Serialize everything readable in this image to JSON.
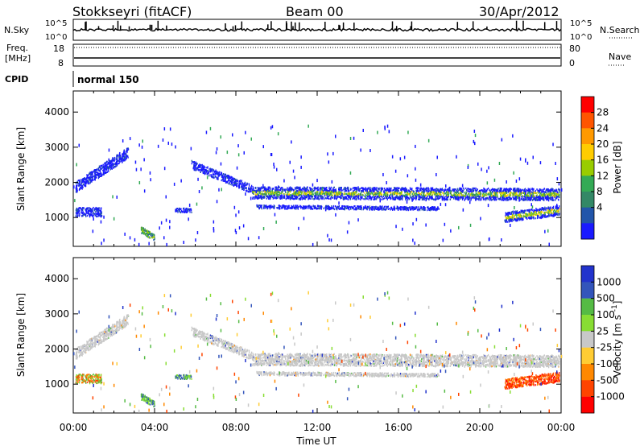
{
  "header": {
    "station": "Stokkseyri (fitACF)",
    "beam": "Beam 00",
    "date": "30/Apr/2012"
  },
  "panels": {
    "nsky": {
      "label": "N.Sky",
      "ticks": [
        "10^5",
        "10^0"
      ],
      "right_ticks": [
        "10^5",
        "10^0"
      ],
      "right_label": "N.Search"
    },
    "freq": {
      "label_line1": "Freq.",
      "label_line2": "[MHz]",
      "ticks": [
        "18",
        "8"
      ],
      "right_ticks": [
        "80",
        "0"
      ],
      "right_label": "Nave"
    },
    "cpid": {
      "label": "CPID",
      "mode": "normal 150"
    }
  },
  "chart_data": [
    {
      "type": "heatmap",
      "title": "",
      "xlabel": "",
      "ylabel": "Slant Range [km]",
      "colorbar_label": "Power [dB]",
      "colorbar_ticks": [
        "28",
        "24",
        "20",
        "16",
        "12",
        "8",
        "4"
      ],
      "colorbar_colors": [
        "#ff0000",
        "#ff5500",
        "#ff9900",
        "#ffcc00",
        "#99cc00",
        "#33aa55",
        "#338866",
        "#2255aa",
        "#1a1aff"
      ],
      "x_tick_labels": [
        "00:00",
        "04:00",
        "08:00",
        "12:00",
        "16:00",
        "20:00",
        "00:00"
      ],
      "y_tick_labels": [
        "1000",
        "2000",
        "3000",
        "4000"
      ],
      "xlim_hours": [
        0,
        24
      ],
      "ylim_km": [
        180,
        4600
      ]
    },
    {
      "type": "heatmap",
      "title": "",
      "xlabel": "Time UT",
      "ylabel": "Slant Range [km]",
      "colorbar_label": "Velocity [m s^-1]",
      "colorbar_ticks": [
        "1000",
        "500",
        "100",
        "25",
        "-25",
        "-100",
        "-500",
        "-1000"
      ],
      "colorbar_colors": [
        "#2233cc",
        "#3355bb",
        "#55bb44",
        "#88dd33",
        "#c8c8c8",
        "#ffcc33",
        "#ff8800",
        "#ff4400",
        "#ff0000"
      ],
      "x_tick_labels": [
        "00:00",
        "04:00",
        "08:00",
        "12:00",
        "16:00",
        "20:00",
        "00:00"
      ],
      "y_tick_labels": [
        "1000",
        "2000",
        "3000",
        "4000"
      ],
      "xlim_hours": [
        0,
        24
      ],
      "ylim_km": [
        180,
        4600
      ]
    }
  ]
}
